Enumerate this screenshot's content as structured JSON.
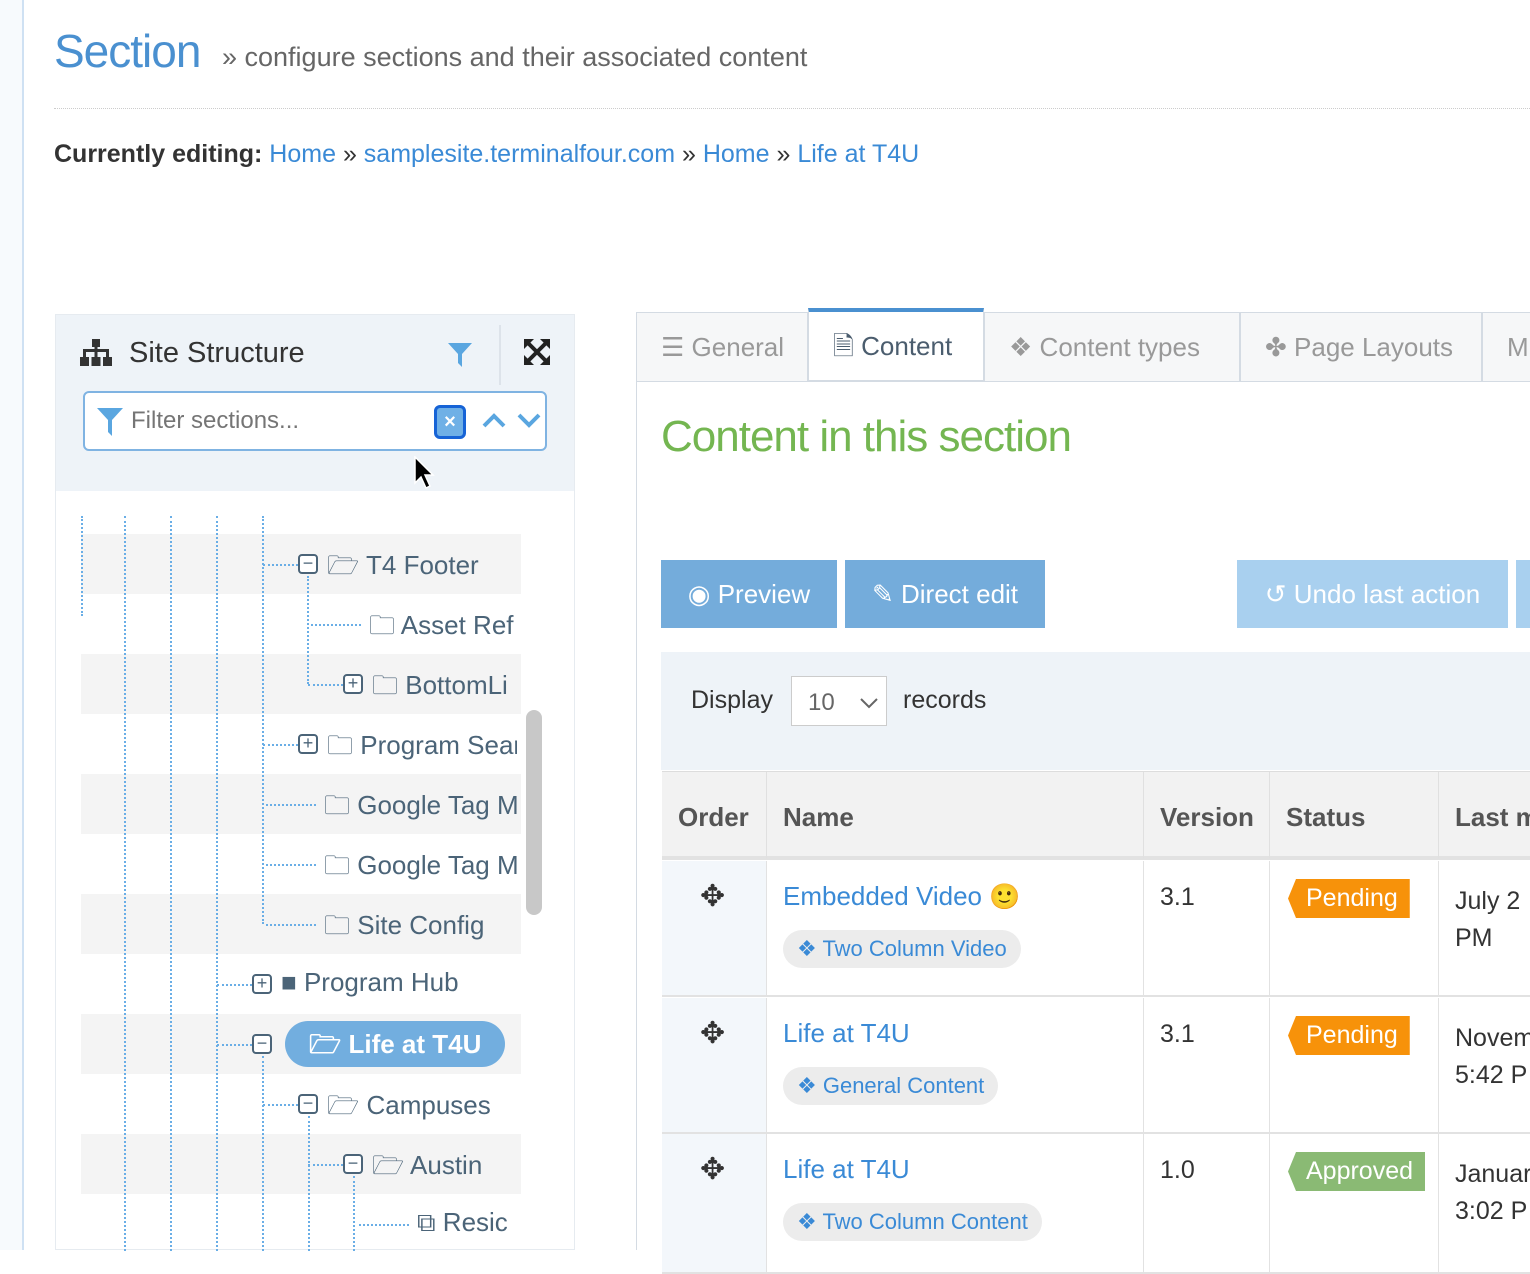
{
  "header": {
    "title": "Section",
    "subtitle": "» configure sections and their associated content"
  },
  "breadcrumb": {
    "label": "Currently editing:",
    "items": [
      "Home",
      "samplesite.terminalfour.com",
      "Home",
      "Life at T4U"
    ],
    "sep": "»"
  },
  "site_structure": {
    "title": "Site Structure",
    "filter_placeholder": "Filter sections...",
    "tree": [
      {
        "label": "T4 Footer",
        "toggle": "minus",
        "icon": "folder-open-outline"
      },
      {
        "label": "Asset Ref",
        "toggle": "",
        "icon": "folder-outline"
      },
      {
        "label": "BottomLi",
        "toggle": "plus",
        "icon": "folder-outline"
      },
      {
        "label": "Program Sear",
        "toggle": "plus",
        "icon": "folder-outline"
      },
      {
        "label": "Google Tag M",
        "toggle": "",
        "icon": "folder-outline"
      },
      {
        "label": "Google Tag M",
        "toggle": "",
        "icon": "folder-outline"
      },
      {
        "label": "Site Config",
        "toggle": "",
        "icon": "folder-outline"
      },
      {
        "label": "Program Hub",
        "toggle": "plus",
        "icon": "folder-solid"
      },
      {
        "label": "Life at T4U",
        "toggle": "minus",
        "icon": "folder-open",
        "selected": true
      },
      {
        "label": "Campuses",
        "toggle": "minus",
        "icon": "folder-open"
      },
      {
        "label": "Austin",
        "toggle": "minus",
        "icon": "folder-open"
      },
      {
        "label": "Resic",
        "toggle": "",
        "icon": "linked-section"
      }
    ]
  },
  "tabs": [
    {
      "label": "General",
      "icon": "sliders-icon"
    },
    {
      "label": "Content",
      "icon": "file-icon",
      "active": true
    },
    {
      "label": "Content types",
      "icon": "cubes-icon"
    },
    {
      "label": "Page Layouts",
      "icon": "puzzle-icon"
    },
    {
      "label": "M"
    }
  ],
  "content": {
    "heading": "Content in this section",
    "buttons": {
      "preview": "Preview",
      "direct_edit": "Direct edit",
      "undo": "Undo last action"
    },
    "display_label": "Display",
    "display_value": "10",
    "records_label": "records",
    "columns": [
      "Order",
      "Name",
      "Version",
      "Status",
      "Last m"
    ],
    "rows": [
      {
        "name": "Embedded Video",
        "emoji": "🙂",
        "type": "Two Column Video",
        "version": "3.1",
        "status": "Pending",
        "modified": [
          "July 2",
          "PM"
        ]
      },
      {
        "name": "Life at T4U",
        "emoji": "",
        "type": "General Content",
        "version": "3.1",
        "status": "Pending",
        "modified": [
          "Novem",
          "5:42 P"
        ]
      },
      {
        "name": "Life at T4U",
        "emoji": "",
        "type": "Two Column Content",
        "version": "1.0",
        "status": "Approved",
        "modified": [
          "Januar",
          "3:02 P"
        ]
      }
    ]
  },
  "colors": {
    "accent": "#4a90d0",
    "heading_green": "#74b651",
    "pending": "#f7920a",
    "approved": "#8aba74",
    "button": "#74acdb"
  }
}
